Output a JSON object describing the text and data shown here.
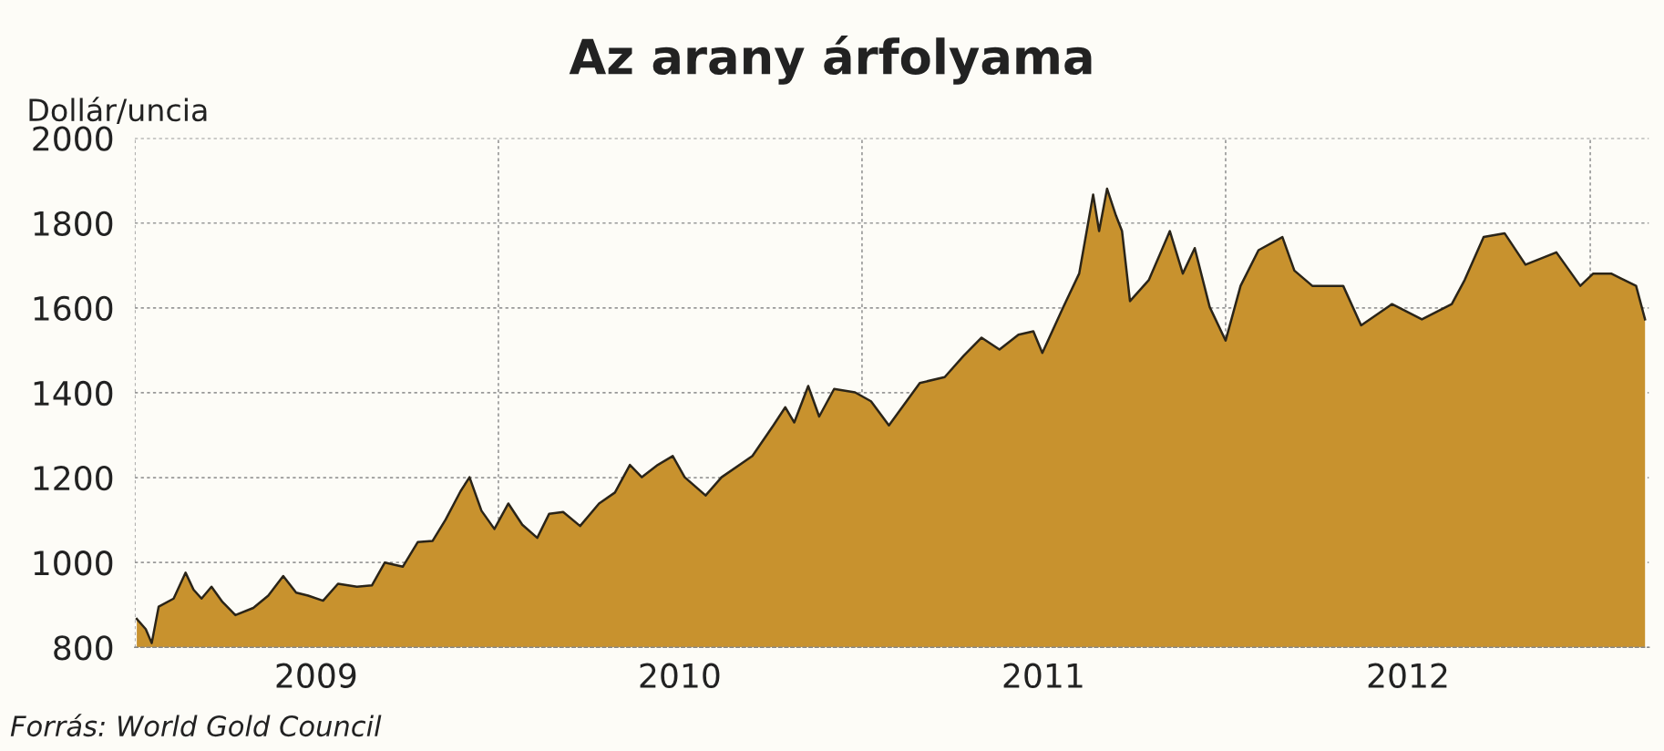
{
  "chart_data": {
    "type": "area",
    "title": "Az arany árfolyama",
    "ylabel": "Dollár/uncia",
    "annotations": [
      "Forrás: World Gold Council"
    ],
    "x": [
      "2009-01-03",
      "2009-01-12",
      "2009-01-18",
      "2009-01-25",
      "2009-02-09",
      "2009-02-21",
      "2009-03-01",
      "2009-03-09",
      "2009-03-19",
      "2009-03-30",
      "2009-04-12",
      "2009-04-30",
      "2009-05-15",
      "2009-05-30",
      "2009-06-12",
      "2009-06-24",
      "2009-07-09",
      "2009-07-24",
      "2009-08-12",
      "2009-08-27",
      "2009-09-09",
      "2009-09-27",
      "2009-10-12",
      "2009-10-27",
      "2009-11-09",
      "2009-11-24",
      "2009-12-03",
      "2009-12-15",
      "2009-12-28",
      "2010-01-11",
      "2010-01-25",
      "2010-02-09",
      "2010-02-21",
      "2010-03-07",
      "2010-03-24",
      "2010-04-12",
      "2010-04-28",
      "2010-05-13",
      "2010-05-25",
      "2010-06-10",
      "2010-06-25",
      "2010-07-07",
      "2010-07-28",
      "2010-08-13",
      "2010-09-13",
      "2010-10-04",
      "2010-10-16",
      "2010-10-25",
      "2010-11-08",
      "2010-11-19",
      "2010-12-04",
      "2010-12-25",
      "2011-01-10",
      "2011-01-28",
      "2011-02-28",
      "2011-03-25",
      "2011-04-13",
      "2011-05-01",
      "2011-05-19",
      "2011-06-07",
      "2011-06-22",
      "2011-07-01",
      "2011-07-22",
      "2011-08-07",
      "2011-08-21",
      "2011-08-27",
      "2011-09-04",
      "2011-09-13",
      "2011-09-19",
      "2011-09-27",
      "2011-10-16",
      "2011-11-06",
      "2011-11-19",
      "2011-12-01",
      "2011-12-16",
      "2012-01-01",
      "2012-01-16",
      "2012-02-03",
      "2012-02-27",
      "2012-03-10",
      "2012-03-28",
      "2012-04-28",
      "2012-05-16",
      "2012-06-16",
      "2012-07-16",
      "2012-08-15",
      "2012-08-28",
      "2012-09-16",
      "2012-10-07",
      "2012-10-28",
      "2012-11-28",
      "2012-12-22",
      "2013-01-04",
      "2013-01-22",
      "2013-02-16",
      "2013-02-25"
    ],
    "series": [
      {
        "color": "#c8922e",
        "values": [
          867,
          843,
          810,
          896,
          915,
          976,
          936,
          915,
          943,
          907,
          876,
          893,
          922,
          968,
          929,
          922,
          910,
          950,
          943,
          946,
          1000,
          990,
          1048,
          1051,
          1101,
          1168,
          1201,
          1122,
          1079,
          1139,
          1089,
          1058,
          1115,
          1119,
          1086,
          1139,
          1165,
          1230,
          1201,
          1230,
          1251,
          1201,
          1158,
          1201,
          1251,
          1323,
          1366,
          1330,
          1416,
          1344,
          1409,
          1401,
          1380,
          1323,
          1423,
          1437,
          1487,
          1530,
          1502,
          1537,
          1545,
          1494,
          1602,
          1681,
          1867,
          1781,
          1881,
          1817,
          1781,
          1616,
          1666,
          1781,
          1681,
          1741,
          1602,
          1523,
          1652,
          1736,
          1767,
          1688,
          1652,
          1652,
          1559,
          1609,
          1573,
          1609,
          1666,
          1767,
          1776,
          1702,
          1731,
          1652,
          1681,
          1681,
          1652,
          1573
        ]
      }
    ],
    "xlim": [
      "2009-01-01",
      "2013-03-01"
    ],
    "xticks": [
      {
        "value": "2009-01-01",
        "label": null
      },
      {
        "value": "2009-07-02",
        "label": "2009"
      },
      {
        "value": "2010-01-01",
        "label": null
      },
      {
        "value": "2010-07-02",
        "label": "2010"
      },
      {
        "value": "2011-01-01",
        "label": null
      },
      {
        "value": "2011-07-02",
        "label": "2011"
      },
      {
        "value": "2012-01-01",
        "label": null
      },
      {
        "value": "2012-07-02",
        "label": "2012"
      },
      {
        "value": "2013-01-01",
        "label": null
      }
    ],
    "ylim": [
      800,
      2000
    ],
    "yticks": [
      800,
      1000,
      1200,
      1400,
      1600,
      1800,
      2000
    ],
    "grid": true,
    "legend": false
  }
}
